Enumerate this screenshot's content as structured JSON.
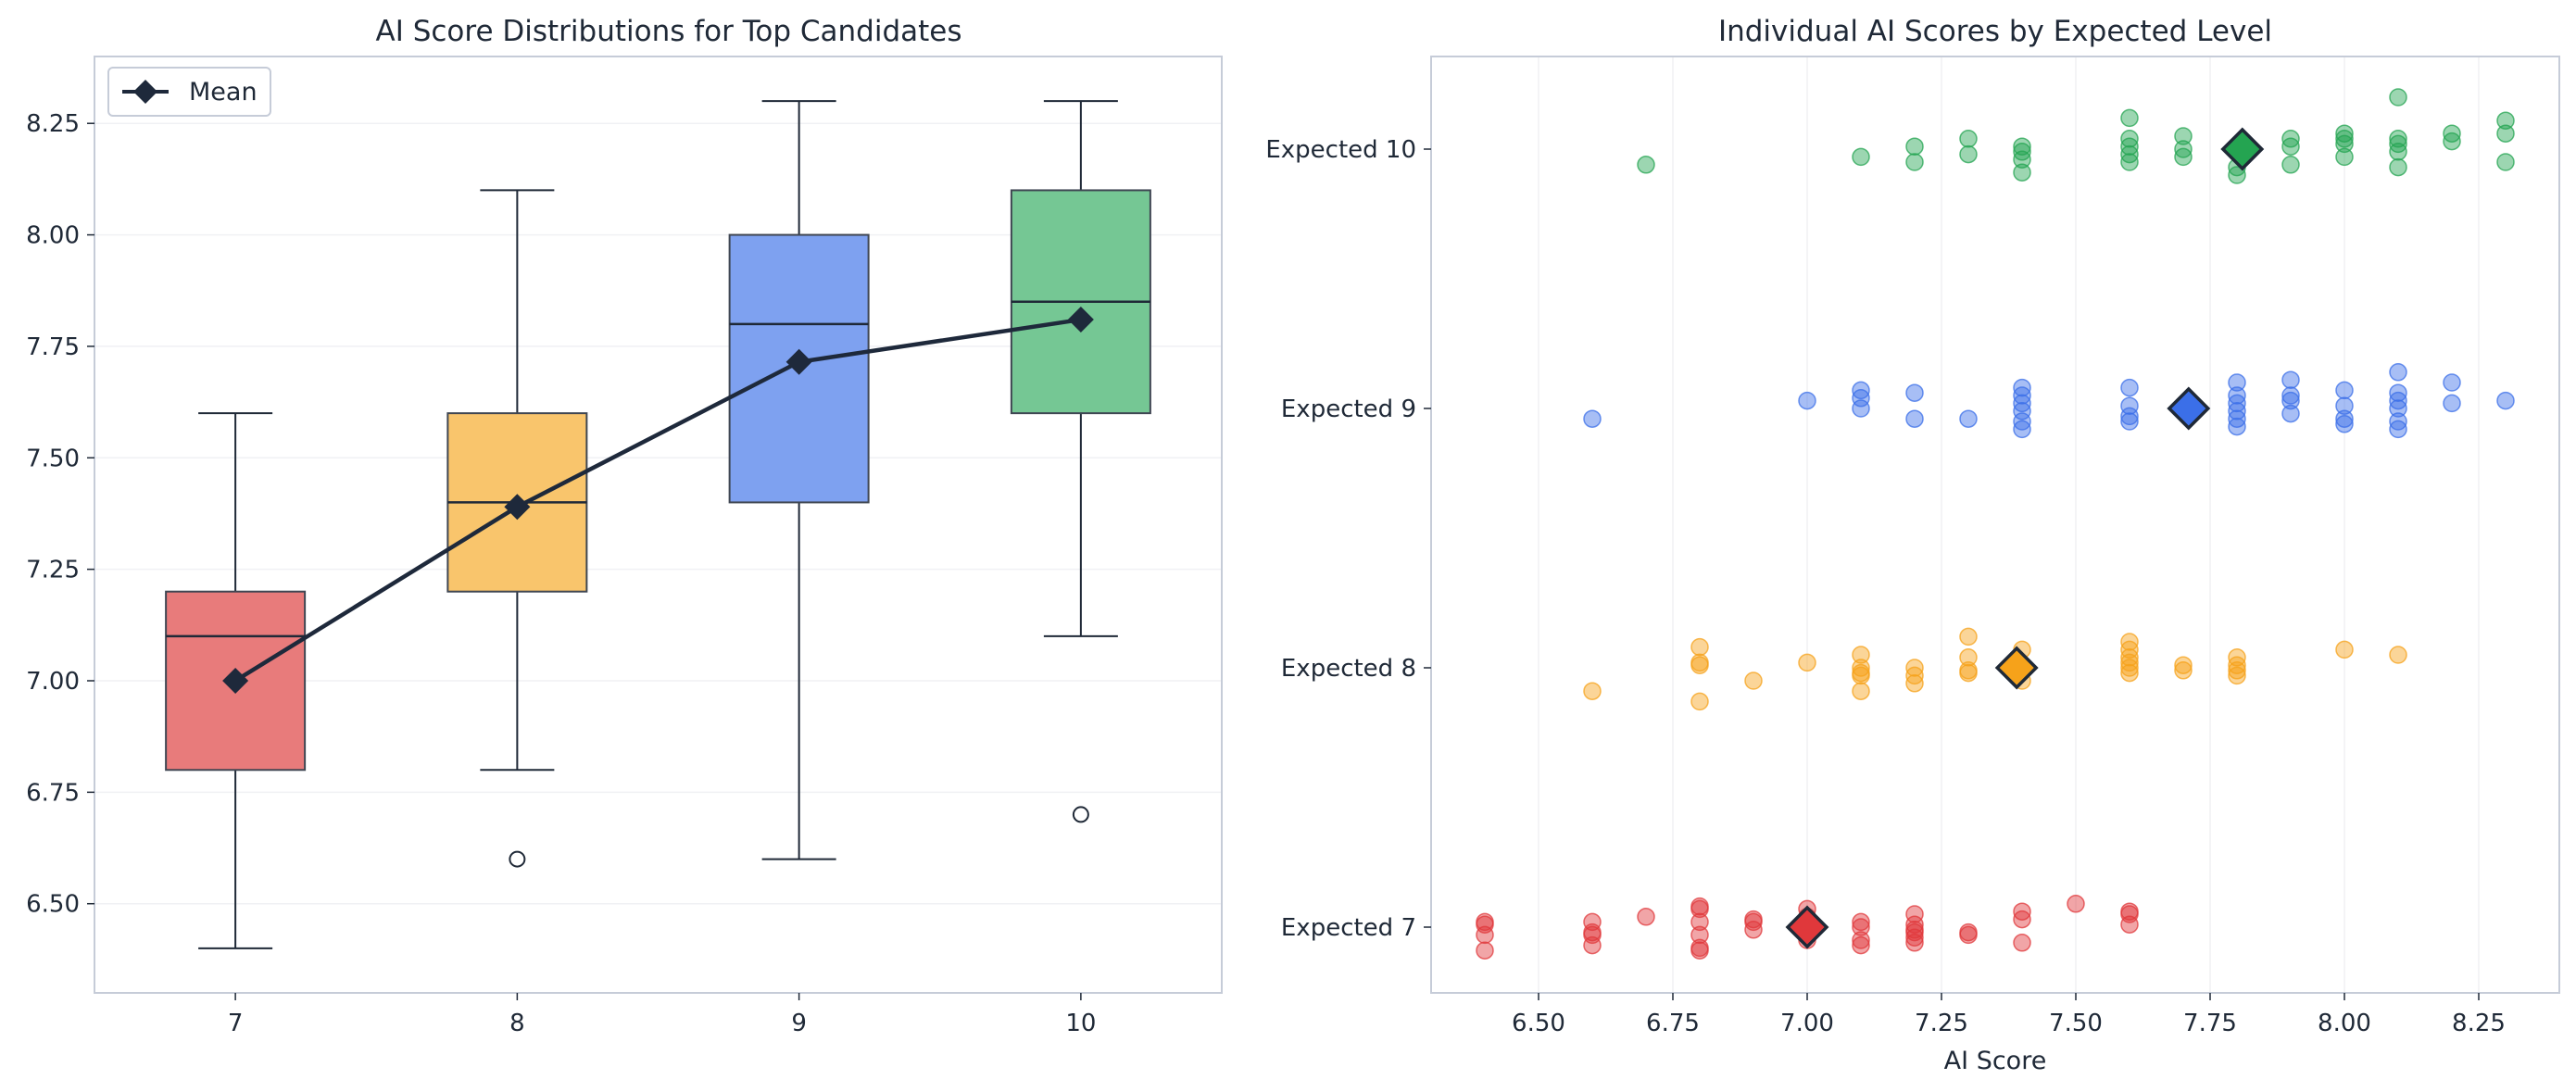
{
  "chart_data": [
    {
      "type": "box",
      "title": "AI Score Distributions for Top Candidates",
      "xlabel": "",
      "ylabel": "",
      "categories": [
        "7",
        "8",
        "9",
        "10"
      ],
      "ylim": [
        6.3,
        8.4
      ],
      "yticks": [
        "6.50",
        "6.75",
        "7.00",
        "7.25",
        "7.50",
        "7.75",
        "8.00",
        "8.25"
      ],
      "colors": [
        "#e87b7b",
        "#f9c56c",
        "#7ea1f0",
        "#75c794"
      ],
      "boxes": [
        {
          "category": "7",
          "whisker_low": 6.4,
          "q1": 6.8,
          "median": 7.1,
          "q3": 7.2,
          "whisker_high": 7.6,
          "outliers": []
        },
        {
          "category": "8",
          "whisker_low": 6.8,
          "q1": 7.2,
          "median": 7.4,
          "q3": 7.6,
          "whisker_high": 8.1,
          "outliers": [
            6.6
          ]
        },
        {
          "category": "9",
          "whisker_low": 6.6,
          "q1": 7.4,
          "median": 7.8,
          "q3": 8.0,
          "whisker_high": 8.3,
          "outliers": []
        },
        {
          "category": "10",
          "whisker_low": 7.1,
          "q1": 7.6,
          "median": 7.85,
          "q3": 8.1,
          "whisker_high": 8.3,
          "outliers": [
            6.7
          ]
        }
      ],
      "mean_series": {
        "name": "Mean",
        "values": [
          7.0,
          7.39,
          7.715,
          7.81
        ],
        "color": "#1e293b"
      },
      "legend": {
        "position": "top-left",
        "entries": [
          "Mean"
        ]
      },
      "grid": "y"
    },
    {
      "type": "scatter",
      "title": "Individual AI Scores by Expected Level",
      "xlabel": "AI Score",
      "ylabel": "",
      "xlim": [
        6.3,
        8.4
      ],
      "xticks": [
        "6.50",
        "6.75",
        "7.00",
        "7.25",
        "7.50",
        "7.75",
        "8.00",
        "8.25"
      ],
      "categories": [
        "Expected 7",
        "Expected 8",
        "Expected 9",
        "Expected 10"
      ],
      "grid": "x",
      "series": [
        {
          "category": "Expected 7",
          "color": "#e0383b",
          "mean": 7.0,
          "points": [
            [
              6.4,
              7.02
            ],
            [
              6.4,
              6.97
            ],
            [
              6.4,
              6.91
            ],
            [
              6.4,
              7.01
            ],
            [
              6.6,
              7.02
            ],
            [
              6.6,
              6.98
            ],
            [
              6.6,
              6.93
            ],
            [
              6.6,
              6.97
            ],
            [
              6.7,
              7.04
            ],
            [
              6.8,
              7.08
            ],
            [
              6.8,
              7.07
            ],
            [
              6.8,
              7.02
            ],
            [
              6.8,
              6.97
            ],
            [
              6.8,
              6.92
            ],
            [
              6.8,
              6.91
            ],
            [
              6.9,
              7.03
            ],
            [
              6.9,
              6.99
            ],
            [
              6.9,
              7.02
            ],
            [
              7.0,
              7.07
            ],
            [
              7.0,
              7.04
            ],
            [
              7.0,
              6.98
            ],
            [
              7.0,
              6.95
            ],
            [
              7.1,
              7.02
            ],
            [
              7.1,
              7.0
            ],
            [
              7.1,
              6.95
            ],
            [
              7.1,
              6.93
            ],
            [
              7.2,
              7.05
            ],
            [
              7.2,
              7.01
            ],
            [
              7.2,
              6.98
            ],
            [
              7.2,
              6.96
            ],
            [
              7.2,
              6.94
            ],
            [
              7.2,
              6.99
            ],
            [
              7.3,
              6.98
            ],
            [
              7.3,
              6.97
            ],
            [
              7.4,
              7.06
            ],
            [
              7.4,
              7.03
            ],
            [
              7.4,
              6.94
            ],
            [
              7.5,
              7.09
            ],
            [
              7.6,
              7.05
            ],
            [
              7.6,
              7.01
            ],
            [
              7.6,
              7.06
            ]
          ]
        },
        {
          "category": "Expected 8",
          "color": "#f6a21a",
          "mean": 7.39,
          "points": [
            [
              6.6,
              7.91
            ],
            [
              6.8,
              8.08
            ],
            [
              6.8,
              8.02
            ],
            [
              6.8,
              8.01
            ],
            [
              6.8,
              7.87
            ],
            [
              6.9,
              7.95
            ],
            [
              7.0,
              8.02
            ],
            [
              7.1,
              8.05
            ],
            [
              7.1,
              8.0
            ],
            [
              7.1,
              7.97
            ],
            [
              7.1,
              7.91
            ],
            [
              7.1,
              7.98
            ],
            [
              7.2,
              8.0
            ],
            [
              7.2,
              7.97
            ],
            [
              7.2,
              7.94
            ],
            [
              7.3,
              8.12
            ],
            [
              7.3,
              8.04
            ],
            [
              7.3,
              7.99
            ],
            [
              7.3,
              7.98
            ],
            [
              7.4,
              8.07
            ],
            [
              7.4,
              7.95
            ],
            [
              7.6,
              8.1
            ],
            [
              7.6,
              8.07
            ],
            [
              7.6,
              8.04
            ],
            [
              7.6,
              8.02
            ],
            [
              7.6,
              8.0
            ],
            [
              7.6,
              7.98
            ],
            [
              7.7,
              8.01
            ],
            [
              7.7,
              7.99
            ],
            [
              7.8,
              8.04
            ],
            [
              7.8,
              8.01
            ],
            [
              7.8,
              7.99
            ],
            [
              7.8,
              7.97
            ],
            [
              8.0,
              8.07
            ],
            [
              8.1,
              8.05
            ]
          ]
        },
        {
          "category": "Expected 9",
          "color": "#3b6fe8",
          "mean": 7.71,
          "points": [
            [
              6.6,
              8.96
            ],
            [
              7.0,
              9.03
            ],
            [
              7.1,
              9.07
            ],
            [
              7.1,
              9.04
            ],
            [
              7.1,
              9.0
            ],
            [
              7.2,
              9.06
            ],
            [
              7.2,
              8.96
            ],
            [
              7.3,
              8.96
            ],
            [
              7.4,
              9.08
            ],
            [
              7.4,
              9.05
            ],
            [
              7.4,
              9.02
            ],
            [
              7.4,
              8.99
            ],
            [
              7.4,
              8.95
            ],
            [
              7.4,
              8.92
            ],
            [
              7.6,
              9.08
            ],
            [
              7.6,
              9.01
            ],
            [
              7.6,
              8.97
            ],
            [
              7.6,
              8.95
            ],
            [
              7.8,
              9.1
            ],
            [
              7.8,
              9.05
            ],
            [
              7.8,
              9.02
            ],
            [
              7.8,
              8.99
            ],
            [
              7.8,
              8.96
            ],
            [
              7.8,
              8.93
            ],
            [
              7.9,
              9.11
            ],
            [
              7.9,
              9.05
            ],
            [
              7.9,
              9.03
            ],
            [
              7.9,
              8.98
            ],
            [
              8.0,
              9.07
            ],
            [
              8.0,
              9.01
            ],
            [
              8.0,
              8.96
            ],
            [
              8.0,
              8.94
            ],
            [
              8.1,
              9.14
            ],
            [
              8.1,
              9.06
            ],
            [
              8.1,
              9.03
            ],
            [
              8.1,
              9.0
            ],
            [
              8.1,
              8.95
            ],
            [
              8.1,
              8.92
            ],
            [
              8.2,
              9.1
            ],
            [
              8.2,
              9.02
            ],
            [
              8.3,
              9.03
            ]
          ]
        },
        {
          "category": "Expected 10",
          "color": "#24a451",
          "mean": 7.81,
          "points": [
            [
              6.7,
              9.94
            ],
            [
              7.1,
              9.97
            ],
            [
              7.2,
              10.01
            ],
            [
              7.2,
              9.95
            ],
            [
              7.3,
              10.04
            ],
            [
              7.3,
              9.98
            ],
            [
              7.4,
              10.01
            ],
            [
              7.4,
              9.99
            ],
            [
              7.4,
              9.96
            ],
            [
              7.4,
              9.91
            ],
            [
              7.6,
              10.12
            ],
            [
              7.6,
              10.04
            ],
            [
              7.6,
              10.01
            ],
            [
              7.6,
              9.98
            ],
            [
              7.6,
              9.95
            ],
            [
              7.7,
              10.05
            ],
            [
              7.7,
              10.0
            ],
            [
              7.7,
              9.97
            ],
            [
              7.8,
              9.93
            ],
            [
              7.8,
              9.9
            ],
            [
              7.9,
              10.04
            ],
            [
              7.9,
              10.01
            ],
            [
              7.9,
              9.94
            ],
            [
              8.0,
              10.06
            ],
            [
              8.0,
              10.04
            ],
            [
              8.0,
              10.02
            ],
            [
              8.0,
              9.97
            ],
            [
              8.1,
              10.2
            ],
            [
              8.1,
              10.04
            ],
            [
              8.1,
              10.02
            ],
            [
              8.1,
              9.99
            ],
            [
              8.1,
              9.93
            ],
            [
              8.2,
              10.06
            ],
            [
              8.2,
              10.03
            ],
            [
              8.3,
              10.11
            ],
            [
              8.3,
              10.06
            ],
            [
              8.3,
              9.95
            ]
          ]
        }
      ]
    }
  ]
}
